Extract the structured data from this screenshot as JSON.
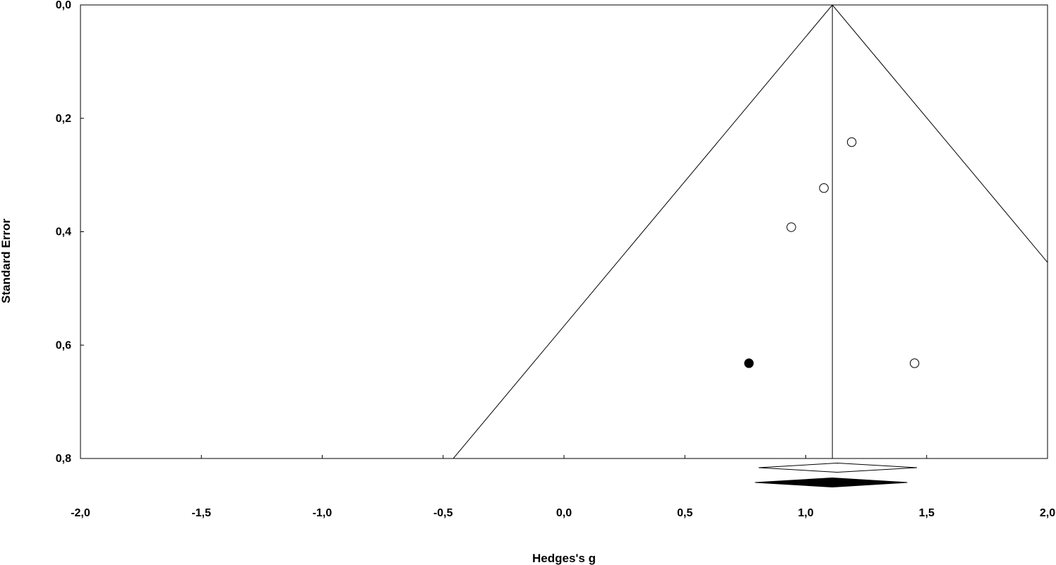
{
  "chart_data": {
    "type": "scatter",
    "subtype": "funnel-plot",
    "title": "",
    "xlabel": "Hedges's g",
    "ylabel": "Standard Error",
    "xlim": [
      -2.0,
      2.0
    ],
    "ylim": [
      0.0,
      0.8
    ],
    "y_inverted": true,
    "x_ticks": [
      "-2,0",
      "-1,5",
      "-1,0",
      "-0,5",
      "0,0",
      "0,5",
      "1,0",
      "1,5",
      "2,0"
    ],
    "x_tick_values": [
      -2.0,
      -1.5,
      -1.0,
      -0.5,
      0.0,
      0.5,
      1.0,
      1.5,
      2.0
    ],
    "y_ticks": [
      "0,0",
      "0,2",
      "0,4",
      "0,6",
      "0,8"
    ],
    "y_tick_values": [
      0.0,
      0.2,
      0.4,
      0.6,
      0.8
    ],
    "grid": false,
    "pooled_effect": 1.11,
    "funnel_multiplier": 1.96,
    "series": [
      {
        "style": "open-circle",
        "points": [
          {
            "x": 1.19,
            "y": 0.242
          },
          {
            "x": 1.075,
            "y": 0.323
          },
          {
            "x": 0.94,
            "y": 0.392
          },
          {
            "x": 1.45,
            "y": 0.632
          }
        ]
      },
      {
        "style": "filled-circle",
        "points": [
          {
            "x": 0.765,
            "y": 0.632
          }
        ]
      }
    ],
    "summary_diamonds": [
      {
        "style": "open-diamond",
        "center": 1.13,
        "lower": 0.805,
        "upper": 1.46
      },
      {
        "style": "filled-diamond",
        "center": 1.11,
        "lower": 0.79,
        "upper": 1.42
      }
    ],
    "colors": {
      "line": "#000000",
      "background": "#ffffff",
      "open_fill": "#ffffff",
      "filled": "#000000"
    }
  }
}
